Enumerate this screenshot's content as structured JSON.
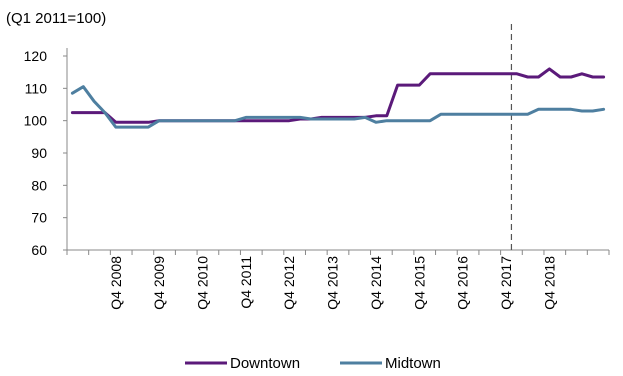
{
  "unit_label": "(Q1 2011=100)",
  "colors": {
    "Downtown": "#5B1A7A",
    "Midtown": "#4E7FA0",
    "axis": "#888888",
    "marker": "#555555"
  },
  "chart_data": {
    "type": "line",
    "title": "",
    "xlabel": "",
    "ylabel": "",
    "ylim": [
      60,
      120
    ],
    "y_ticks": [
      60,
      70,
      80,
      90,
      100,
      110,
      120
    ],
    "grid": false,
    "legend_position": "bottom",
    "x_tick_labels": [
      "Q4 2008",
      "Q4 2009",
      "Q4 2010",
      "Q4 2011",
      "Q4 2012",
      "Q4 2013",
      "Q4 2014",
      "Q4 2015",
      "Q4 2016",
      "Q4 2017",
      "Q4 2018"
    ],
    "x_tick_index_start": 4,
    "x_tick_index_step": 4,
    "vertical_marker_index": 40.5,
    "series": [
      {
        "name": "Downtown",
        "values": [
          102.5,
          102.5,
          102.5,
          102.5,
          99.5,
          99.5,
          99.5,
          99.5,
          100,
          100,
          100,
          100,
          100,
          100,
          100,
          100,
          100,
          100,
          100,
          100,
          100,
          100.5,
          100.5,
          101,
          101,
          101,
          101,
          101,
          101.5,
          101.5,
          111,
          111,
          111,
          114.5,
          114.5,
          114.5,
          114.5,
          114.5,
          114.5,
          114.5,
          114.5,
          114.5,
          113.5,
          113.5,
          116,
          113.5,
          113.5,
          114.5,
          113.5,
          113.5
        ]
      },
      {
        "name": "Midtown",
        "values": [
          108.5,
          110.5,
          106,
          102.5,
          98,
          98,
          98,
          98,
          100,
          100,
          100,
          100,
          100,
          100,
          100,
          100,
          101,
          101,
          101,
          101,
          101,
          101,
          100.5,
          100.5,
          100.5,
          100.5,
          100.5,
          101,
          99.5,
          100,
          100,
          100,
          100,
          100,
          102,
          102,
          102,
          102,
          102,
          102,
          102,
          102,
          102,
          103.5,
          103.5,
          103.5,
          103.5,
          103,
          103,
          103.5
        ]
      }
    ]
  }
}
